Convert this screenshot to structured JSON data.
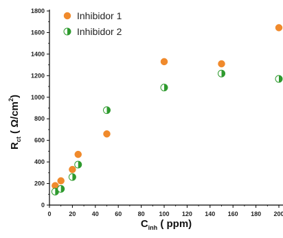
{
  "chart_data": {
    "type": "scatter",
    "xlabel": {
      "main": "C",
      "sub": "inh",
      "rest": " ( ppm)"
    },
    "ylabel": {
      "main": "R",
      "sub": "ct",
      "rest": " ( Ω/cm",
      "sup": "2",
      "end": ")"
    },
    "xlim": [
      0,
      200
    ],
    "ylim": [
      0,
      1800
    ],
    "x_ticks": [
      "0",
      "20",
      "40",
      "60",
      "80",
      "100",
      "120",
      "140",
      "160",
      "180",
      "200"
    ],
    "y_ticks": [
      "0",
      "200",
      "400",
      "600",
      "800",
      "1000",
      "1200",
      "1400",
      "1600",
      "1800"
    ],
    "grid": false,
    "legend_position": "top-left",
    "series": [
      {
        "name": "Inhibidor 1",
        "marker": "filled-circle",
        "color": "#F08A2C",
        "points": [
          {
            "x": 5,
            "y": 180
          },
          {
            "x": 10,
            "y": 225
          },
          {
            "x": 20,
            "y": 330
          },
          {
            "x": 25,
            "y": 470
          },
          {
            "x": 50,
            "y": 660
          },
          {
            "x": 100,
            "y": 1330
          },
          {
            "x": 150,
            "y": 1310
          },
          {
            "x": 200,
            "y": 1645
          }
        ]
      },
      {
        "name": "Inhibidor 2",
        "marker": "half-filled-circle",
        "color": "#2E9A2E",
        "points": [
          {
            "x": 5,
            "y": 125
          },
          {
            "x": 10,
            "y": 150
          },
          {
            "x": 20,
            "y": 260
          },
          {
            "x": 25,
            "y": 375
          },
          {
            "x": 50,
            "y": 880
          },
          {
            "x": 100,
            "y": 1090
          },
          {
            "x": 150,
            "y": 1220
          },
          {
            "x": 200,
            "y": 1170
          }
        ]
      }
    ]
  }
}
